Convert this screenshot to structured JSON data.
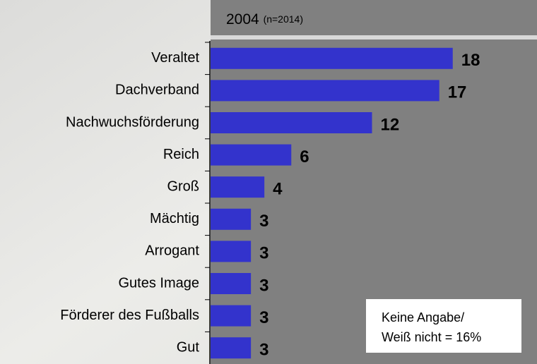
{
  "chart_data": {
    "type": "bar",
    "orientation": "horizontal",
    "title": "2004",
    "subtitle": "(n=2014)",
    "categories": [
      "Veraltet",
      "Dachverband",
      "Nachwuchsförderung",
      "Reich",
      "Groß",
      "Mächtig",
      "Arrogant",
      "Gutes Image",
      "Förderer des Fußballs",
      "Gut"
    ],
    "values": [
      18,
      17,
      12,
      6,
      4,
      3,
      3,
      3,
      3,
      3
    ],
    "color": "#3333cc",
    "xlim": [
      0,
      24
    ],
    "annotation": [
      "Keine Angabe/",
      "Weiß nicht = 16%"
    ]
  }
}
